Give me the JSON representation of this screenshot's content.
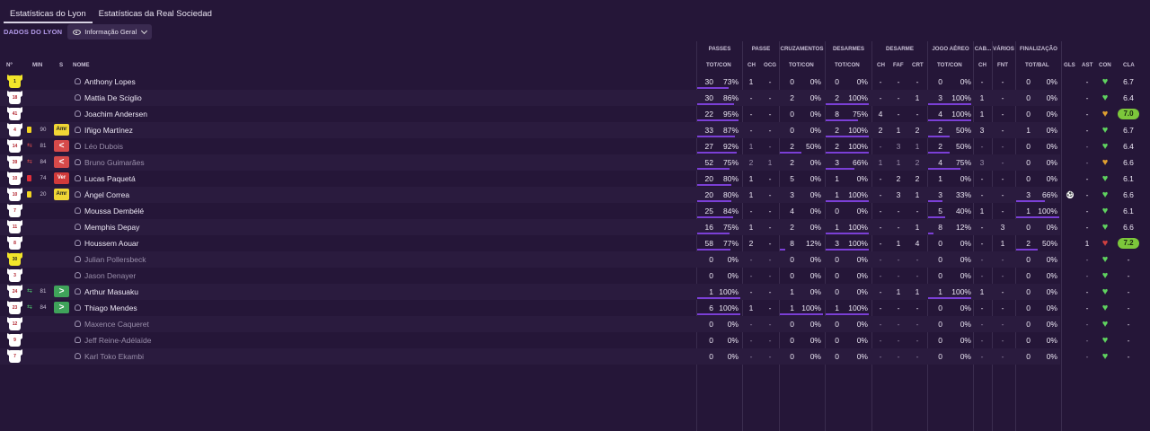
{
  "tabs": [
    "Estatísticas do Lyon",
    "Estatísticas da Real Sociedad"
  ],
  "club_label": "DADOS DO LYON",
  "view_select": "Informação Geral",
  "groups": {
    "passes": "PASSES",
    "passe": "PASSE",
    "cruzamentos": "CRUZAMENTOS",
    "desarmes": "DESARMES",
    "desarme": "DESARME",
    "jogo_aereo": "JOGO AÉREO",
    "cab": "CAB...",
    "varios": "VÁRIOS",
    "finalizacao": "FINALIZAÇÃO"
  },
  "columns": {
    "num": "Nº",
    "min": "MIN",
    "s": "S",
    "nome": "NOME",
    "passes_tc": "TOT/CON",
    "ch": "CH",
    "ocg": "OCG",
    "cruz_tc": "TOT/CON",
    "des_tc": "TOT/CON",
    "d_ch": "CH",
    "faf": "FAF",
    "crt": "CRT",
    "aer_tc": "TOT/CON",
    "cab_ch": "CH",
    "fnt": "FNT",
    "tot_bal": "TOT/BAL",
    "gls": "GLS",
    "ast": "AST",
    "con": "CON",
    "cla": "CLA"
  },
  "colors": {
    "accent": "#7b3fd6",
    "rating_green": "#7cc73b",
    "heart_green": "#5fd35f",
    "bg": "#251638"
  },
  "players": [
    {
      "num": "1",
      "gk": true,
      "min": "",
      "card": "",
      "sub": "",
      "name": "Anthony Lopes",
      "dim": false,
      "p_tot": "30",
      "p_con": "73%",
      "p_frac": 0.73,
      "ch": "1",
      "ocg": "-",
      "c_tot": "0",
      "c_con": "0%",
      "c_frac": 0,
      "d_tot": "0",
      "d_con": "0%",
      "d_frac": 0,
      "dch": "-",
      "faf": "-",
      "crt": "-",
      "a_tot": "0",
      "a_con": "0%",
      "a_frac": 0,
      "cch": "-",
      "fnt": "-",
      "f_tot": "0",
      "f_con": "0%",
      "f_frac": 0,
      "gls": "",
      "ast": "-",
      "con": "green",
      "cla": "6.7",
      "cla_badge": false
    },
    {
      "num": "18",
      "gk": false,
      "min": "",
      "card": "",
      "sub": "",
      "name": "Mattia De Sciglio",
      "dim": false,
      "p_tot": "30",
      "p_con": "86%",
      "p_frac": 0.86,
      "ch": "-",
      "ocg": "-",
      "c_tot": "2",
      "c_con": "0%",
      "c_frac": 0,
      "d_tot": "2",
      "d_con": "100%",
      "d_frac": 1,
      "dch": "-",
      "faf": "-",
      "crt": "1",
      "a_tot": "3",
      "a_con": "100%",
      "a_frac": 1,
      "cch": "1",
      "fnt": "-",
      "f_tot": "0",
      "f_con": "0%",
      "f_frac": 0,
      "gls": "",
      "ast": "-",
      "con": "green",
      "cla": "6.4",
      "cla_badge": false
    },
    {
      "num": "41",
      "gk": false,
      "min": "",
      "card": "",
      "sub": "",
      "name": "Joachim Andersen",
      "dim": false,
      "p_tot": "22",
      "p_con": "95%",
      "p_frac": 0.95,
      "ch": "-",
      "ocg": "-",
      "c_tot": "0",
      "c_con": "0%",
      "c_frac": 0,
      "d_tot": "8",
      "d_con": "75%",
      "d_frac": 0.75,
      "dch": "4",
      "faf": "-",
      "crt": "-",
      "a_tot": "4",
      "a_con": "100%",
      "a_frac": 1,
      "cch": "1",
      "fnt": "-",
      "f_tot": "0",
      "f_con": "0%",
      "f_frac": 0,
      "gls": "",
      "ast": "-",
      "con": "orange",
      "cla": "7.0",
      "cla_badge": true
    },
    {
      "num": "4",
      "gk": false,
      "min": "90",
      "card": "yellow",
      "sub": "",
      "badge": "Amr",
      "badge_type": "yellow",
      "name": "Iñigo Martínez",
      "dim": false,
      "p_tot": "33",
      "p_con": "87%",
      "p_frac": 0.87,
      "ch": "-",
      "ocg": "-",
      "c_tot": "0",
      "c_con": "0%",
      "c_frac": 0,
      "d_tot": "2",
      "d_con": "100%",
      "d_frac": 1,
      "dch": "2",
      "faf": "1",
      "crt": "2",
      "a_tot": "2",
      "a_con": "50%",
      "a_frac": 0.5,
      "cch": "3",
      "fnt": "-",
      "f_tot": "1",
      "f_con": "0%",
      "f_frac": 0,
      "gls": "",
      "ast": "-",
      "con": "green",
      "cla": "6.7",
      "cla_badge": false
    },
    {
      "num": "14",
      "gk": false,
      "min": "81",
      "card": "",
      "sub": "out",
      "badge": "<",
      "badge_type": "back",
      "name": "Léo Dubois",
      "dim": true,
      "p_tot": "27",
      "p_con": "92%",
      "p_frac": 0.92,
      "ch": "1",
      "ocg": "-",
      "c_tot": "2",
      "c_con": "50%",
      "c_frac": 0.5,
      "d_tot": "2",
      "d_con": "100%",
      "d_frac": 1,
      "dch": "-",
      "faf": "3",
      "crt": "1",
      "a_tot": "2",
      "a_con": "50%",
      "a_frac": 0.5,
      "cch": "-",
      "fnt": "-",
      "f_tot": "0",
      "f_con": "0%",
      "f_frac": 0,
      "gls": "",
      "ast": "-",
      "con": "green",
      "cla": "6.4",
      "cla_badge": false
    },
    {
      "num": "39",
      "gk": false,
      "min": "84",
      "card": "",
      "sub": "out",
      "badge": "<",
      "badge_type": "back",
      "name": "Bruno Guimarães",
      "dim": true,
      "p_tot": "52",
      "p_con": "75%",
      "p_frac": 0.75,
      "ch": "2",
      "ocg": "1",
      "c_tot": "2",
      "c_con": "0%",
      "c_frac": 0,
      "d_tot": "3",
      "d_con": "66%",
      "d_frac": 0.66,
      "dch": "1",
      "faf": "1",
      "crt": "2",
      "a_tot": "4",
      "a_con": "75%",
      "a_frac": 0.75,
      "cch": "3",
      "fnt": "-",
      "f_tot": "0",
      "f_con": "0%",
      "f_frac": 0,
      "gls": "",
      "ast": "-",
      "con": "orange",
      "cla": "6.6",
      "cla_badge": false
    },
    {
      "num": "10",
      "gk": false,
      "min": "74",
      "card": "red",
      "sub": "",
      "badge": "Ver",
      "badge_type": "red",
      "name": "Lucas Paquetá",
      "dim": false,
      "p_tot": "20",
      "p_con": "80%",
      "p_frac": 0.8,
      "ch": "1",
      "ocg": "-",
      "c_tot": "5",
      "c_con": "0%",
      "c_frac": 0,
      "d_tot": "1",
      "d_con": "0%",
      "d_frac": 0,
      "dch": "-",
      "faf": "2",
      "crt": "2",
      "a_tot": "1",
      "a_con": "0%",
      "a_frac": 0,
      "cch": "-",
      "fnt": "-",
      "f_tot": "0",
      "f_con": "0%",
      "f_frac": 0,
      "gls": "",
      "ast": "-",
      "con": "green",
      "cla": "6.1",
      "cla_badge": false
    },
    {
      "num": "10",
      "gk": false,
      "min": "20",
      "card": "yellow",
      "sub": "",
      "badge": "Amr",
      "badge_type": "yellow",
      "name": "Ángel Correa",
      "dim": false,
      "p_tot": "20",
      "p_con": "80%",
      "p_frac": 0.8,
      "ch": "1",
      "ocg": "-",
      "c_tot": "3",
      "c_con": "0%",
      "c_frac": 0,
      "d_tot": "1",
      "d_con": "100%",
      "d_frac": 1,
      "dch": "-",
      "faf": "3",
      "crt": "1",
      "a_tot": "3",
      "a_con": "33%",
      "a_frac": 0.33,
      "cch": "-",
      "fnt": "-",
      "f_tot": "3",
      "f_con": "66%",
      "f_frac": 0.66,
      "gls": "ball",
      "ast": "-",
      "con": "green",
      "cla": "6.6",
      "cla_badge": false
    },
    {
      "num": "7",
      "gk": false,
      "min": "",
      "card": "",
      "sub": "",
      "name": "Moussa Dembélé",
      "dim": false,
      "p_tot": "25",
      "p_con": "84%",
      "p_frac": 0.84,
      "ch": "-",
      "ocg": "-",
      "c_tot": "4",
      "c_con": "0%",
      "c_frac": 0,
      "d_tot": "0",
      "d_con": "0%",
      "d_frac": 0,
      "dch": "-",
      "faf": "-",
      "crt": "-",
      "a_tot": "5",
      "a_con": "40%",
      "a_frac": 0.4,
      "cch": "1",
      "fnt": "-",
      "f_tot": "1",
      "f_con": "100%",
      "f_frac": 1,
      "gls": "",
      "ast": "-",
      "con": "green",
      "cla": "6.1",
      "cla_badge": false
    },
    {
      "num": "11",
      "gk": false,
      "min": "",
      "card": "",
      "sub": "",
      "name": "Memphis Depay",
      "dim": false,
      "p_tot": "16",
      "p_con": "75%",
      "p_frac": 0.75,
      "ch": "1",
      "ocg": "-",
      "c_tot": "2",
      "c_con": "0%",
      "c_frac": 0,
      "d_tot": "1",
      "d_con": "100%",
      "d_frac": 1,
      "dch": "-",
      "faf": "-",
      "crt": "1",
      "a_tot": "8",
      "a_con": "12%",
      "a_frac": 0.12,
      "cch": "-",
      "fnt": "3",
      "f_tot": "0",
      "f_con": "0%",
      "f_frac": 0,
      "gls": "",
      "ast": "-",
      "con": "green",
      "cla": "6.6",
      "cla_badge": false
    },
    {
      "num": "8",
      "gk": false,
      "min": "",
      "card": "",
      "sub": "",
      "name": "Houssem Aouar",
      "dim": false,
      "p_tot": "58",
      "p_con": "77%",
      "p_frac": 0.77,
      "ch": "2",
      "ocg": "-",
      "c_tot": "8",
      "c_con": "12%",
      "c_frac": 0.12,
      "d_tot": "3",
      "d_con": "100%",
      "d_frac": 1,
      "dch": "-",
      "faf": "1",
      "crt": "4",
      "a_tot": "0",
      "a_con": "0%",
      "a_frac": 0,
      "cch": "-",
      "fnt": "1",
      "f_tot": "2",
      "f_con": "50%",
      "f_frac": 0.5,
      "gls": "",
      "ast": "1",
      "con": "red",
      "cla": "7.2",
      "cla_badge": true
    },
    {
      "num": "30",
      "gk": true,
      "min": "",
      "card": "",
      "sub": "",
      "name": "Julian Pollersbeck",
      "dim": true,
      "p_tot": "0",
      "p_con": "0%",
      "p_frac": 0,
      "ch": "-",
      "ocg": "-",
      "c_tot": "0",
      "c_con": "0%",
      "c_frac": 0,
      "d_tot": "0",
      "d_con": "0%",
      "d_frac": 0,
      "dch": "-",
      "faf": "-",
      "crt": "-",
      "a_tot": "0",
      "a_con": "0%",
      "a_frac": 0,
      "cch": "-",
      "fnt": "-",
      "f_tot": "0",
      "f_con": "0%",
      "f_frac": 0,
      "gls": "",
      "ast": "-",
      "con": "green",
      "cla": "-",
      "cla_badge": false
    },
    {
      "num": "3",
      "gk": false,
      "min": "",
      "card": "",
      "sub": "",
      "name": "Jason Denayer",
      "dim": true,
      "p_tot": "0",
      "p_con": "0%",
      "p_frac": 0,
      "ch": "-",
      "ocg": "-",
      "c_tot": "0",
      "c_con": "0%",
      "c_frac": 0,
      "d_tot": "0",
      "d_con": "0%",
      "d_frac": 0,
      "dch": "-",
      "faf": "-",
      "crt": "-",
      "a_tot": "0",
      "a_con": "0%",
      "a_frac": 0,
      "cch": "-",
      "fnt": "-",
      "f_tot": "0",
      "f_con": "0%",
      "f_frac": 0,
      "gls": "",
      "ast": "-",
      "con": "green",
      "cla": "-",
      "cla_badge": false
    },
    {
      "num": "24",
      "gk": false,
      "min": "81",
      "card": "",
      "sub": "in",
      "badge": ">",
      "badge_type": "green",
      "name": "Arthur Masuaku",
      "dim": false,
      "p_tot": "1",
      "p_con": "100%",
      "p_frac": 1,
      "ch": "-",
      "ocg": "-",
      "c_tot": "1",
      "c_con": "0%",
      "c_frac": 0,
      "d_tot": "0",
      "d_con": "0%",
      "d_frac": 0,
      "dch": "-",
      "faf": "1",
      "crt": "1",
      "a_tot": "1",
      "a_con": "100%",
      "a_frac": 1,
      "cch": "1",
      "fnt": "-",
      "f_tot": "0",
      "f_con": "0%",
      "f_frac": 0,
      "gls": "",
      "ast": "-",
      "con": "green",
      "cla": "-",
      "cla_badge": false
    },
    {
      "num": "23",
      "gk": false,
      "min": "84",
      "card": "",
      "sub": "in",
      "badge": ">",
      "badge_type": "green",
      "name": "Thiago Mendes",
      "dim": false,
      "p_tot": "6",
      "p_con": "100%",
      "p_frac": 1,
      "ch": "1",
      "ocg": "-",
      "c_tot": "1",
      "c_con": "100%",
      "c_frac": 1,
      "d_tot": "1",
      "d_con": "100%",
      "d_frac": 1,
      "dch": "-",
      "faf": "-",
      "crt": "-",
      "a_tot": "0",
      "a_con": "0%",
      "a_frac": 0,
      "cch": "-",
      "fnt": "-",
      "f_tot": "0",
      "f_con": "0%",
      "f_frac": 0,
      "gls": "",
      "ast": "-",
      "con": "green",
      "cla": "-",
      "cla_badge": false
    },
    {
      "num": "12",
      "gk": false,
      "min": "",
      "card": "",
      "sub": "",
      "name": "Maxence Caqueret",
      "dim": true,
      "p_tot": "0",
      "p_con": "0%",
      "p_frac": 0,
      "ch": "-",
      "ocg": "-",
      "c_tot": "0",
      "c_con": "0%",
      "c_frac": 0,
      "d_tot": "0",
      "d_con": "0%",
      "d_frac": 0,
      "dch": "-",
      "faf": "-",
      "crt": "-",
      "a_tot": "0",
      "a_con": "0%",
      "a_frac": 0,
      "cch": "-",
      "fnt": "-",
      "f_tot": "0",
      "f_con": "0%",
      "f_frac": 0,
      "gls": "",
      "ast": "-",
      "con": "green",
      "cla": "-",
      "cla_badge": false
    },
    {
      "num": "9",
      "gk": false,
      "min": "",
      "card": "",
      "sub": "",
      "name": "Jeff Reine-Adélaïde",
      "dim": true,
      "p_tot": "0",
      "p_con": "0%",
      "p_frac": 0,
      "ch": "-",
      "ocg": "-",
      "c_tot": "0",
      "c_con": "0%",
      "c_frac": 0,
      "d_tot": "0",
      "d_con": "0%",
      "d_frac": 0,
      "dch": "-",
      "faf": "-",
      "crt": "-",
      "a_tot": "0",
      "a_con": "0%",
      "a_frac": 0,
      "cch": "-",
      "fnt": "-",
      "f_tot": "0",
      "f_con": "0%",
      "f_frac": 0,
      "gls": "",
      "ast": "-",
      "con": "green",
      "cla": "-",
      "cla_badge": false
    },
    {
      "num": "7",
      "gk": false,
      "min": "",
      "card": "",
      "sub": "",
      "name": "Karl Toko Ekambi",
      "dim": true,
      "p_tot": "0",
      "p_con": "0%",
      "p_frac": 0,
      "ch": "-",
      "ocg": "-",
      "c_tot": "0",
      "c_con": "0%",
      "c_frac": 0,
      "d_tot": "0",
      "d_con": "0%",
      "d_frac": 0,
      "dch": "-",
      "faf": "-",
      "crt": "-",
      "a_tot": "0",
      "a_con": "0%",
      "a_frac": 0,
      "cch": "-",
      "fnt": "-",
      "f_tot": "0",
      "f_con": "0%",
      "f_frac": 0,
      "gls": "",
      "ast": "-",
      "con": "green",
      "cla": "-",
      "cla_badge": false
    }
  ]
}
